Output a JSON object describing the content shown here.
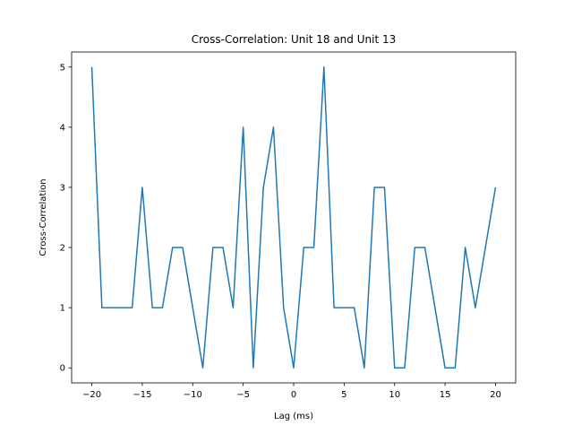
{
  "chart_data": {
    "type": "line",
    "title": "Cross-Correlation: Unit 18 and Unit 13",
    "xlabel": "Lag (ms)",
    "ylabel": "Cross-Correlation",
    "xlim": [
      -22,
      22
    ],
    "ylim": [
      -0.25,
      5.25
    ],
    "xticks": [
      -20,
      -15,
      -10,
      -5,
      0,
      5,
      10,
      15,
      20
    ],
    "yticks": [
      0,
      1,
      2,
      3,
      4,
      5
    ],
    "grid": false,
    "line_color": "#1f77b4",
    "series": [
      {
        "x": [
          -20,
          -19,
          -18,
          -17,
          -16,
          -15,
          -14,
          -13,
          -12,
          -11,
          -10,
          -9,
          -8,
          -7,
          -6,
          -5,
          -4,
          -3,
          -2,
          -1,
          0,
          1,
          2,
          3,
          4,
          5,
          6,
          7,
          8,
          9,
          10,
          11,
          12,
          13,
          14,
          15,
          16,
          17,
          18,
          19,
          20
        ],
        "y": [
          5,
          1,
          1,
          1,
          1,
          3,
          1,
          1,
          2,
          2,
          1,
          0,
          2,
          2,
          1,
          4,
          0,
          3,
          4,
          1,
          0,
          2,
          2,
          5,
          1,
          1,
          1,
          0,
          3,
          3,
          0,
          0,
          2,
          2,
          1,
          0,
          0,
          2,
          1,
          2,
          3
        ]
      }
    ]
  }
}
